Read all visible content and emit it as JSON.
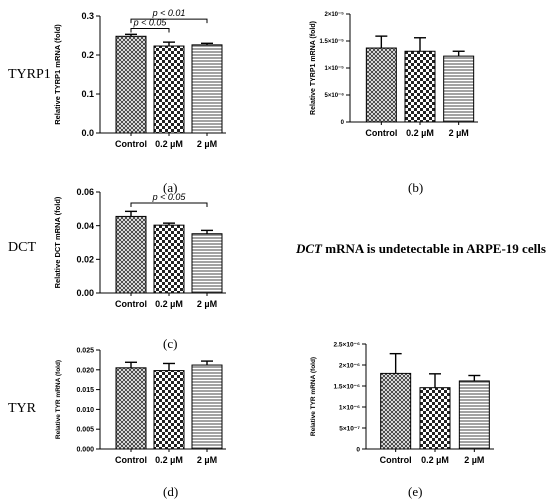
{
  "row_labels": [
    "TYRP1",
    "DCT",
    "TYR"
  ],
  "captions": [
    "(a)",
    "(b)",
    "(c)",
    "(d)",
    "(e)"
  ],
  "note": {
    "gene": "DCT",
    "rest": " mRNA is undetectable in ARPE-19 cells"
  },
  "chart_data": [
    {
      "type": "bar",
      "panel": "a",
      "categories": [
        "Control",
        "0.2 µM",
        "2 µM"
      ],
      "values": [
        0.248,
        0.223,
        0.226
      ],
      "errors": [
        0.005,
        0.01,
        0.004
      ],
      "patterns": [
        "cross",
        "checker",
        "hlines"
      ],
      "ylabel": "Relative TYRP1 mRNA (fold)",
      "ylim": [
        0,
        0.3
      ],
      "yticks": [
        0.0,
        0.1,
        0.2,
        0.3
      ],
      "ytick_labels": [
        "0.0",
        "0.1",
        "0.2",
        "0.3"
      ],
      "annotations": [
        {
          "text": "p < 0.01",
          "from": 0,
          "to": 2,
          "level": 0.292
        },
        {
          "text": "p < 0.05",
          "from": 0,
          "to": 1,
          "level": 0.268
        }
      ]
    },
    {
      "type": "bar",
      "panel": "b",
      "categories": [
        "Control",
        "0.2 µM",
        "2 µM"
      ],
      "values": [
        1.37e-05,
        1.31e-05,
        1.22e-05
      ],
      "errors": [
        2.2e-06,
        2.5e-06,
        9e-07
      ],
      "patterns": [
        "cross",
        "checker",
        "hlines"
      ],
      "ylabel": "Relative TYRP1 mRNA (fold)",
      "ylim": [
        0,
        2e-05
      ],
      "yticks": [
        0,
        5e-06,
        1e-05,
        1.5e-05,
        2e-05
      ],
      "ytick_labels": [
        "0",
        "5×10⁻⁶",
        "1×10⁻⁵",
        "1.5×10⁻⁵",
        "2×10⁻⁵"
      ],
      "annotations": []
    },
    {
      "type": "bar",
      "panel": "c",
      "categories": [
        "Control",
        "0.2 µM",
        "2 µM"
      ],
      "values": [
        0.0455,
        0.0403,
        0.0352
      ],
      "errors": [
        0.003,
        0.0012,
        0.002
      ],
      "patterns": [
        "cross",
        "checker",
        "hlines"
      ],
      "ylabel": "Relative DCT mRNA (fold)",
      "ylim": [
        0,
        0.06
      ],
      "yticks": [
        0.0,
        0.02,
        0.04,
        0.06
      ],
      "ytick_labels": [
        "0.00",
        "0.02",
        "0.04",
        "0.06"
      ],
      "annotations": [
        {
          "text": "p < 0.05",
          "from": 0,
          "to": 2,
          "level": 0.0535
        }
      ]
    },
    {
      "type": "bar",
      "panel": "d",
      "categories": [
        "Control",
        "0.2 µM",
        "2 µM"
      ],
      "values": [
        0.0205,
        0.0198,
        0.0212
      ],
      "errors": [
        0.0014,
        0.0018,
        0.001
      ],
      "patterns": [
        "cross",
        "checker",
        "hlines"
      ],
      "ylabel": "Relative TYR mRNA (fold)",
      "ylim": [
        0,
        0.025
      ],
      "yticks": [
        0.0,
        0.005,
        0.01,
        0.015,
        0.02,
        0.025
      ],
      "ytick_labels": [
        "0.000",
        "0.005",
        "0.010",
        "0.015",
        "0.020",
        "0.025"
      ],
      "annotations": []
    },
    {
      "type": "bar",
      "panel": "e",
      "categories": [
        "Control",
        "0.2 µM",
        "2 µM"
      ],
      "values": [
        1.8e-06,
        1.46e-06,
        1.62e-06
      ],
      "errors": [
        4.7e-07,
        3.3e-07,
        1.3e-07
      ],
      "patterns": [
        "cross",
        "checker",
        "hlines"
      ],
      "ylabel": "Relative TYR mRNA (fold)",
      "ylim": [
        0,
        2.5e-06
      ],
      "yticks": [
        0,
        5e-07,
        1e-06,
        1.5e-06,
        2e-06,
        2.5e-06
      ],
      "ytick_labels": [
        "0",
        "5×10⁻⁷",
        "1×10⁻⁶",
        "1.5×10⁻⁶",
        "2×10⁻⁶",
        "2.5×10⁻⁶"
      ],
      "annotations": []
    }
  ]
}
